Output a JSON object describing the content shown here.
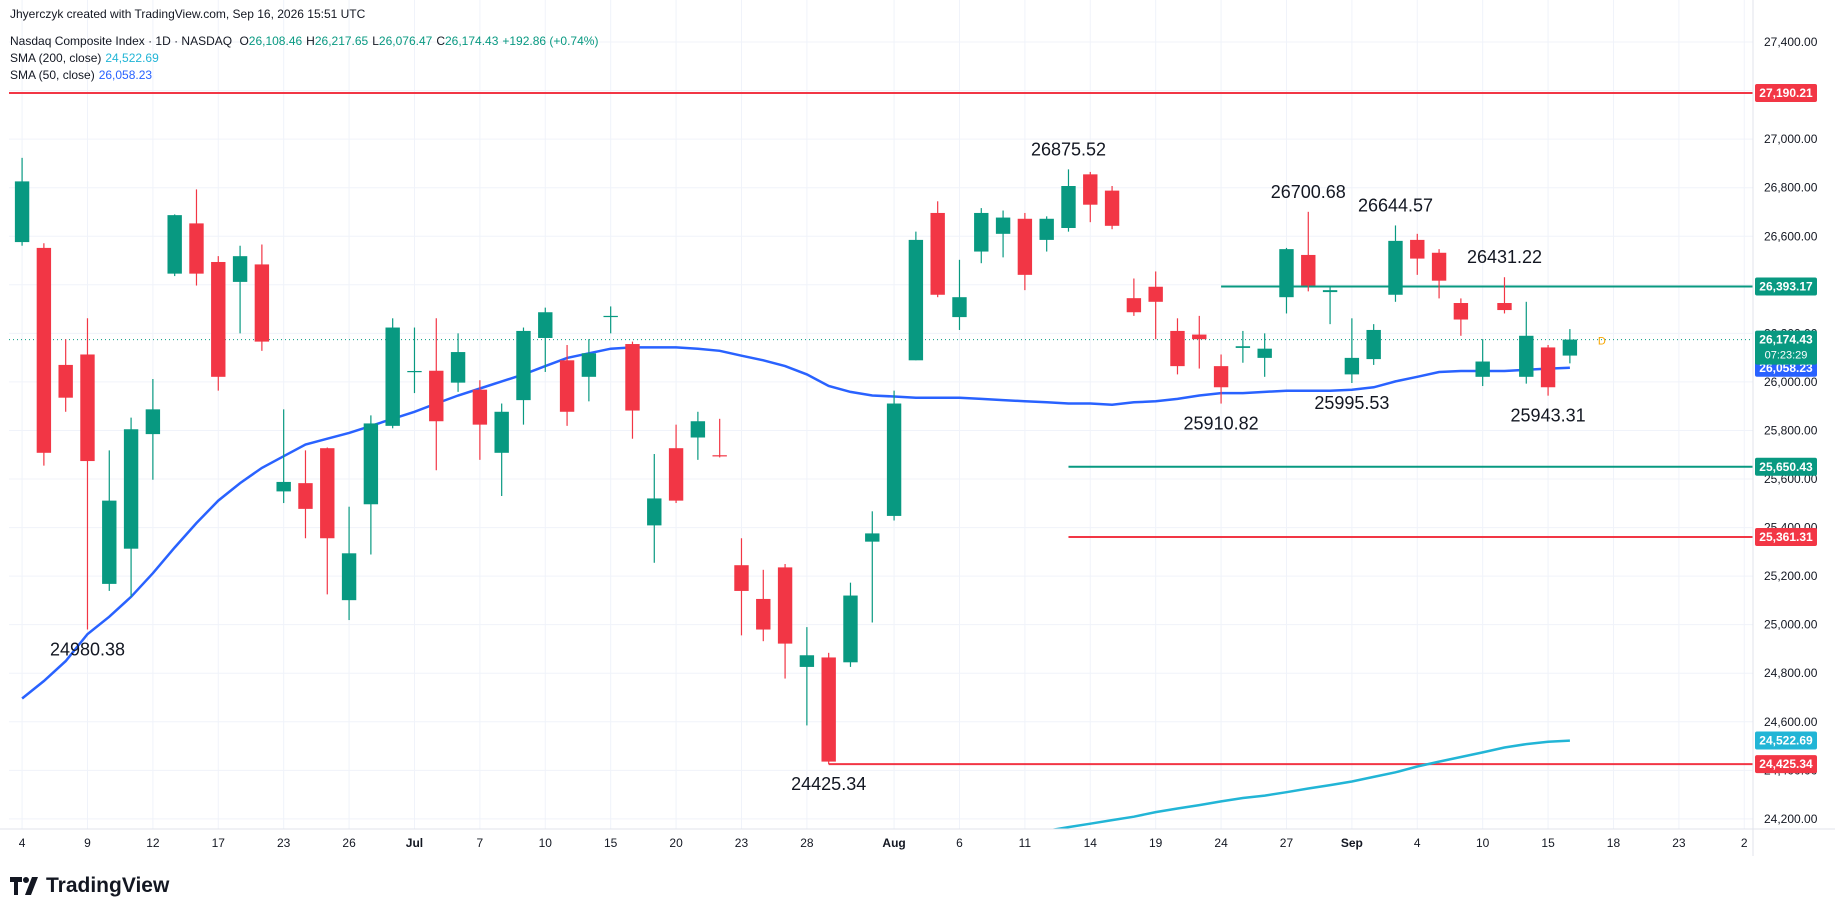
{
  "header": {
    "credit": "Jhyerczyk created with TradingView.com, Sep 16, 2026 15:51 UTC"
  },
  "chart_data": {
    "type": "candlestick",
    "symbol": "Nasdaq Composite Index · 1D · NASDAQ",
    "ohlc_legend": [
      {
        "key": "O",
        "value": "26,108.46"
      },
      {
        "key": "H",
        "value": "26,217.65"
      },
      {
        "key": "L",
        "value": "26,076.47"
      },
      {
        "key": "C",
        "value": "26,174.43"
      }
    ],
    "change": "+192.86 (+0.74%)",
    "up_color": "#089981",
    "down_color": "#f23645",
    "candles": [
      {
        "open": 26576,
        "high": 26923,
        "low": 26561,
        "close": 26826
      },
      {
        "open": 26552,
        "high": 26571,
        "low": 25655,
        "close": 25708
      },
      {
        "open": 26070,
        "high": 26176,
        "low": 25877,
        "close": 25935
      },
      {
        "open": 26113,
        "high": 26262,
        "low": 24980.38,
        "close": 25674
      },
      {
        "open": 25168,
        "high": 25718,
        "low": 25139,
        "close": 25511
      },
      {
        "open": 25313,
        "high": 25853,
        "low": 25115,
        "close": 25805
      },
      {
        "open": 25785,
        "high": 26012,
        "low": 25597,
        "close": 25887
      },
      {
        "open": 26446,
        "high": 26690,
        "low": 26436,
        "close": 26687
      },
      {
        "open": 26653,
        "high": 26793,
        "low": 26397,
        "close": 26446
      },
      {
        "open": 26494,
        "high": 26518,
        "low": 25964,
        "close": 26021
      },
      {
        "open": 26412,
        "high": 26561,
        "low": 26200,
        "close": 26518
      },
      {
        "open": 26484,
        "high": 26566,
        "low": 26128,
        "close": 26166
      },
      {
        "open": 25549,
        "high": 25887,
        "low": 25501,
        "close": 25588
      },
      {
        "open": 25583,
        "high": 25718,
        "low": 25356,
        "close": 25477
      },
      {
        "open": 25727,
        "high": 25730,
        "low": 25125,
        "close": 25356
      },
      {
        "open": 25101,
        "high": 25486,
        "low": 25019,
        "close": 25294
      },
      {
        "open": 25496,
        "high": 25862,
        "low": 25289,
        "close": 25829
      },
      {
        "open": 25819,
        "high": 26262,
        "low": 25809,
        "close": 26224
      },
      {
        "open": 26040,
        "high": 26224,
        "low": 25954,
        "close": 26045
      },
      {
        "open": 26046,
        "high": 26262,
        "low": 25636,
        "close": 25838
      },
      {
        "open": 25997,
        "high": 26200,
        "low": 25959,
        "close": 26123
      },
      {
        "open": 25968,
        "high": 26007,
        "low": 25679,
        "close": 25824
      },
      {
        "open": 25708,
        "high": 25911,
        "low": 25530,
        "close": 25877
      },
      {
        "open": 25925,
        "high": 26224,
        "low": 25824,
        "close": 26210
      },
      {
        "open": 26181,
        "high": 26306,
        "low": 26041,
        "close": 26287
      },
      {
        "open": 26089,
        "high": 26152,
        "low": 25819,
        "close": 25877
      },
      {
        "open": 26021,
        "high": 26176,
        "low": 25920,
        "close": 26118
      },
      {
        "open": 26267,
        "high": 26311,
        "low": 26200,
        "close": 26272
      },
      {
        "open": 26156,
        "high": 26166,
        "low": 25766,
        "close": 25882
      },
      {
        "open": 25409,
        "high": 25703,
        "low": 25255,
        "close": 25520
      },
      {
        "open": 25727,
        "high": 25824,
        "low": 25501,
        "close": 25511
      },
      {
        "open": 25771,
        "high": 25877,
        "low": 25679,
        "close": 25838
      },
      {
        "open": 25698,
        "high": 25848,
        "low": 25689,
        "close": 25694
      },
      {
        "open": 25245,
        "high": 25356,
        "low": 24956,
        "close": 25139
      },
      {
        "open": 25106,
        "high": 25226,
        "low": 24932,
        "close": 24980
      },
      {
        "open": 25236,
        "high": 25250,
        "low": 24778,
        "close": 24922
      },
      {
        "open": 24826,
        "high": 24990,
        "low": 24585,
        "close": 24874
      },
      {
        "open": 24865,
        "high": 24884,
        "low": 24425.34,
        "close": 24436
      },
      {
        "open": 24845,
        "high": 25173,
        "low": 24826,
        "close": 25120
      },
      {
        "open": 25342,
        "high": 25467,
        "low": 25009,
        "close": 25376
      },
      {
        "open": 25448,
        "high": 25964,
        "low": 25429,
        "close": 25911
      },
      {
        "open": 26089,
        "high": 26619,
        "low": 26089,
        "close": 26585
      },
      {
        "open": 26696,
        "high": 26744,
        "low": 26349,
        "close": 26359
      },
      {
        "open": 26267,
        "high": 26503,
        "low": 26214,
        "close": 26349
      },
      {
        "open": 26537,
        "high": 26716,
        "low": 26489,
        "close": 26696
      },
      {
        "open": 26610,
        "high": 26706,
        "low": 26513,
        "close": 26677
      },
      {
        "open": 26672,
        "high": 26696,
        "low": 26378,
        "close": 26441
      },
      {
        "open": 26585,
        "high": 26682,
        "low": 26537,
        "close": 26672
      },
      {
        "open": 26634,
        "high": 26875.52,
        "low": 26619,
        "close": 26807
      },
      {
        "open": 26855,
        "high": 26865,
        "low": 26658,
        "close": 26730
      },
      {
        "open": 26788,
        "high": 26807,
        "low": 26629,
        "close": 26643
      },
      {
        "open": 26345,
        "high": 26426,
        "low": 26272,
        "close": 26287
      },
      {
        "open": 26392,
        "high": 26455,
        "low": 26176,
        "close": 26330
      },
      {
        "open": 26210,
        "high": 26262,
        "low": 26031,
        "close": 26065
      },
      {
        "open": 26195,
        "high": 26272,
        "low": 26055,
        "close": 26176
      },
      {
        "open": 26065,
        "high": 26113,
        "low": 25910.82,
        "close": 25978
      },
      {
        "open": 26140,
        "high": 26210,
        "low": 26079,
        "close": 26147
      },
      {
        "open": 26099,
        "high": 26200,
        "low": 26021,
        "close": 26137
      },
      {
        "open": 26349,
        "high": 26552,
        "low": 26282,
        "close": 26547
      },
      {
        "open": 26523,
        "high": 26700.68,
        "low": 26373,
        "close": 26397
      },
      {
        "open": 26370,
        "high": 26397,
        "low": 26238,
        "close": 26378
      },
      {
        "open": 26031,
        "high": 26262,
        "low": 25995.53,
        "close": 26099
      },
      {
        "open": 26094,
        "high": 26238,
        "low": 26070,
        "close": 26214
      },
      {
        "open": 26359,
        "high": 26644.57,
        "low": 26330,
        "close": 26581
      },
      {
        "open": 26585,
        "high": 26610,
        "low": 26441,
        "close": 26508
      },
      {
        "open": 26532,
        "high": 26547,
        "low": 26344,
        "close": 26417
      },
      {
        "open": 26325,
        "high": 26344,
        "low": 26190,
        "close": 26257
      },
      {
        "open": 26021,
        "high": 26176,
        "low": 25983,
        "close": 26084
      },
      {
        "open": 26325,
        "high": 26431.22,
        "low": 26282,
        "close": 26296
      },
      {
        "open": 26021,
        "high": 26330,
        "low": 25993,
        "close": 26190
      },
      {
        "open": 26142,
        "high": 26152,
        "low": 25943.31,
        "close": 25978
      },
      {
        "open": 26108.46,
        "high": 26217.65,
        "low": 26076.47,
        "close": 26174.43
      }
    ],
    "series": [
      {
        "name": "SMA (200, close)",
        "color": "#22b5d6",
        "value_label": "24,522.69",
        "values": [
          null,
          null,
          null,
          null,
          null,
          null,
          null,
          null,
          null,
          null,
          null,
          null,
          null,
          null,
          null,
          null,
          null,
          null,
          null,
          null,
          null,
          null,
          null,
          null,
          null,
          null,
          null,
          null,
          null,
          null,
          null,
          null,
          null,
          null,
          null,
          null,
          null,
          null,
          null,
          null,
          null,
          null,
          null,
          null,
          null,
          null,
          null,
          24151,
          24166,
          24180,
          24195,
          24209,
          24228,
          24243,
          24257,
          24272,
          24286,
          24296,
          24310,
          24325,
          24339,
          24354,
          24373,
          24392,
          24416,
          24436,
          24455,
          24474,
          24494,
          24508,
          24518,
          24522.69
        ]
      },
      {
        "name": "SMA (50, close)",
        "color": "#2962ff",
        "value_label": "26,058.23",
        "values": [
          24696,
          24768,
          24850,
          24961,
          25033,
          25115,
          25212,
          25318,
          25419,
          25511,
          25583,
          25646,
          25694,
          25742,
          25766,
          25790,
          25819,
          25848,
          25877,
          25911,
          25944,
          25973,
          26002,
          26031,
          26065,
          26099,
          26118,
          26137,
          26142,
          26142,
          26142,
          26137,
          26128,
          26108,
          26089,
          26065,
          26031,
          25983,
          25959,
          25944,
          25940,
          25935,
          25935,
          25935,
          25930,
          25925,
          25920,
          25916,
          25911,
          25911,
          25906,
          25916,
          25920,
          25930,
          25944,
          25954,
          25954,
          25959,
          25964,
          25964,
          25964,
          25968,
          25978,
          26002,
          26021,
          26041,
          26045,
          26045,
          26045,
          26050,
          26055,
          26058.23
        ]
      }
    ],
    "hlines": [
      {
        "value": 27190.21,
        "label": "27,190.21",
        "color": "#f23645"
      },
      {
        "value": 26393.17,
        "label": "26,393.17",
        "color": "#089981",
        "from": 55
      },
      {
        "value": 25650.43,
        "label": "25,650.43",
        "color": "#089981",
        "from": 48
      },
      {
        "value": 25361.31,
        "label": "25,361.31",
        "color": "#f23645",
        "from": 48
      },
      {
        "value": 24425.34,
        "label": "24,425.34",
        "color": "#f23645",
        "from": 37
      }
    ],
    "last_price": {
      "value": 26174.43,
      "label": "26,174.43",
      "countdown": "07:23:29",
      "marker": "D"
    },
    "annotations": [
      {
        "label": 26875.52,
        "x": 48,
        "position": "above"
      },
      {
        "label": 26700.68,
        "x": 59,
        "position": "above"
      },
      {
        "label": 26644.57,
        "x": 63,
        "position": "above"
      },
      {
        "label": 26431.22,
        "x": 68,
        "position": "above"
      },
      {
        "label": 25910.82,
        "x": 55,
        "position": "below"
      },
      {
        "label": 25995.53,
        "x": 61,
        "position": "below"
      },
      {
        "label": 25943.31,
        "x": 70,
        "position": "below"
      },
      {
        "label": 24980.38,
        "x": 3,
        "position": "below"
      },
      {
        "label": 24425.34,
        "x": 37,
        "position": "below"
      }
    ],
    "xlim": [
      -0.6,
      79.4
    ],
    "xticks": [
      {
        "value": 0,
        "label": "4"
      },
      {
        "value": 3,
        "label": "9"
      },
      {
        "value": 6,
        "label": "12"
      },
      {
        "value": 9,
        "label": "17"
      },
      {
        "value": 12,
        "label": "23"
      },
      {
        "value": 15,
        "label": "26"
      },
      {
        "value": 18,
        "label": "Jul"
      },
      {
        "value": 21,
        "label": "7"
      },
      {
        "value": 24,
        "label": "10"
      },
      {
        "value": 27,
        "label": "15"
      },
      {
        "value": 30,
        "label": "20"
      },
      {
        "value": 33,
        "label": "23"
      },
      {
        "value": 36,
        "label": "28"
      },
      {
        "value": 40,
        "label": "Aug"
      },
      {
        "value": 43,
        "label": "6"
      },
      {
        "value": 46,
        "label": "11"
      },
      {
        "value": 49,
        "label": "14"
      },
      {
        "value": 52,
        "label": "19"
      },
      {
        "value": 55,
        "label": "24"
      },
      {
        "value": 58,
        "label": "27"
      },
      {
        "value": 61,
        "label": "Sep"
      },
      {
        "value": 64,
        "label": "4"
      },
      {
        "value": 67,
        "label": "10"
      },
      {
        "value": 70,
        "label": "15"
      },
      {
        "value": 73,
        "label": "18"
      },
      {
        "value": 76,
        "label": "23"
      },
      {
        "value": 79,
        "label": "2"
      }
    ],
    "ylim": [
      24160,
      27525
    ],
    "yticks": [
      {
        "value": 24200,
        "label": "24,200.00"
      },
      {
        "value": 24400,
        "label": "24,400.00"
      },
      {
        "value": 24600,
        "label": "24,600.00"
      },
      {
        "value": 24800,
        "label": "24,800.00"
      },
      {
        "value": 25000,
        "label": "25,000.00"
      },
      {
        "value": 25200,
        "label": "25,200.00"
      },
      {
        "value": 25400,
        "label": "25,400.00"
      },
      {
        "value": 25600,
        "label": "25,600.00"
      },
      {
        "value": 25800,
        "label": "25,800.00"
      },
      {
        "value": 26000,
        "label": "26,000.00"
      },
      {
        "value": 26200,
        "label": "26,200.00"
      },
      {
        "value": 26400,
        "label": "26,400.00"
      },
      {
        "value": 26600,
        "label": "26,600.00"
      },
      {
        "value": 26800,
        "label": "26,800.00"
      },
      {
        "value": 27000,
        "label": "27,000.00"
      },
      {
        "value": 27200,
        "label": "27,200.00"
      },
      {
        "value": 27400,
        "label": "27,400.00"
      }
    ],
    "grid": true
  },
  "footer": {
    "logo": "TradingView"
  }
}
